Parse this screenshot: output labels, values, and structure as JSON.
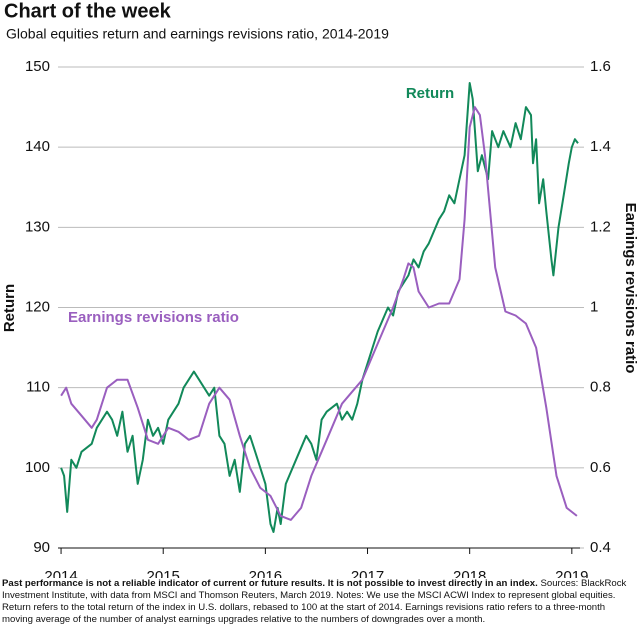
{
  "chart_data": {
    "type": "line",
    "title": "Chart of the week",
    "subtitle": "Global equities return and earnings revisions ratio, 2014-2019",
    "ylabel": "Return",
    "y2label": "Earnings revisions ratio",
    "footnote_bold": "Past performance is not a reliable indicator of current or future results. It is not possible to invest directly in an index.",
    "footnote": "Sources: BlackRock Investment Institute, with data from MSCI and Thomson Reuters, March 2019. Notes: We use the MSCI ACWI Index to represent global equities. Return refers to the total return of the index in U.S. dollars, rebased to 100 at the start of 2014. Earnings revisions ratio refers to a three-month moving average of the number of analyst earnings upgrades relative to the numbers of downgrades over a month.",
    "xlim": [
      2013.97,
      2019.08
    ],
    "xticks": [
      2014,
      2015,
      2016,
      2017,
      2018,
      2019
    ],
    "ylim": [
      90,
      150
    ],
    "yticks": [
      90,
      100,
      110,
      120,
      130,
      140,
      150
    ],
    "y2lim": [
      0.4,
      1.6
    ],
    "y2ticks": [
      0.4,
      0.6,
      0.8,
      1,
      1.2,
      1.4,
      1.6
    ],
    "grid": true,
    "series": [
      {
        "name": "Return",
        "color": "#12895a",
        "x": [
          2014.0,
          2014.03,
          2014.06,
          2014.1,
          2014.15,
          2014.2,
          2014.3,
          2014.35,
          2014.45,
          2014.5,
          2014.55,
          2014.6,
          2014.65,
          2014.7,
          2014.75,
          2014.8,
          2014.85,
          2014.9,
          2014.95,
          2015.0,
          2015.05,
          2015.15,
          2015.2,
          2015.3,
          2015.35,
          2015.45,
          2015.5,
          2015.55,
          2015.6,
          2015.65,
          2015.7,
          2015.75,
          2015.8,
          2015.85,
          2015.9,
          2015.95,
          2016.0,
          2016.05,
          2016.08,
          2016.12,
          2016.15,
          2016.2,
          2016.3,
          2016.4,
          2016.45,
          2016.5,
          2016.55,
          2016.6,
          2016.7,
          2016.75,
          2016.8,
          2016.85,
          2016.9,
          2016.95,
          2017.0,
          2017.1,
          2017.2,
          2017.25,
          2017.3,
          2017.4,
          2017.45,
          2017.5,
          2017.55,
          2017.6,
          2017.7,
          2017.75,
          2017.8,
          2017.85,
          2017.9,
          2017.95,
          2018.0,
          2018.03,
          2018.08,
          2018.12,
          2018.18,
          2018.22,
          2018.28,
          2018.33,
          2018.4,
          2018.45,
          2018.5,
          2018.55,
          2018.6,
          2018.62,
          2018.65,
          2018.68,
          2018.72,
          2018.75,
          2018.8,
          2018.82,
          2018.87,
          2018.92,
          2018.97,
          2019.0,
          2019.03,
          2019.06
        ],
        "values": [
          100,
          99,
          94.5,
          101,
          100,
          102,
          103,
          105,
          107,
          106,
          104,
          107,
          102,
          104,
          98,
          101,
          106,
          104,
          105,
          103,
          106,
          108,
          110,
          112,
          111,
          109,
          110,
          104,
          103,
          99,
          101,
          97,
          103,
          104,
          102,
          100,
          98,
          93,
          92,
          95,
          93,
          98,
          101,
          104,
          103,
          101,
          106,
          107,
          108,
          106,
          107,
          106,
          108,
          111,
          113,
          117,
          120,
          119,
          122,
          124,
          126,
          125,
          127,
          128,
          131,
          132,
          134,
          133,
          136,
          139,
          148,
          146,
          137,
          139,
          136,
          142,
          140,
          142,
          140,
          143,
          141,
          145,
          144,
          138,
          141,
          133,
          136,
          132,
          126,
          124,
          130,
          134,
          138,
          140,
          141,
          140.5
        ]
      },
      {
        "name": "Earnings revisions ratio",
        "color": "#9a5fbf",
        "axis": "y2",
        "x": [
          2014.0,
          2014.05,
          2014.1,
          2014.2,
          2014.3,
          2014.35,
          2014.45,
          2014.55,
          2014.65,
          2014.75,
          2014.85,
          2014.95,
          2015.05,
          2015.15,
          2015.25,
          2015.35,
          2015.45,
          2015.55,
          2015.65,
          2015.75,
          2015.85,
          2015.95,
          2016.05,
          2016.15,
          2016.25,
          2016.35,
          2016.45,
          2016.55,
          2016.65,
          2016.75,
          2016.85,
          2016.95,
          2017.05,
          2017.15,
          2017.25,
          2017.35,
          2017.4,
          2017.45,
          2017.5,
          2017.6,
          2017.7,
          2017.8,
          2017.9,
          2017.95,
          2018.0,
          2018.05,
          2018.1,
          2018.15,
          2018.25,
          2018.35,
          2018.45,
          2018.55,
          2018.65,
          2018.75,
          2018.85,
          2018.95,
          2019.05
        ],
        "values": [
          0.78,
          0.8,
          0.76,
          0.73,
          0.7,
          0.72,
          0.8,
          0.82,
          0.82,
          0.75,
          0.67,
          0.66,
          0.7,
          0.69,
          0.67,
          0.68,
          0.76,
          0.8,
          0.77,
          0.68,
          0.6,
          0.55,
          0.53,
          0.48,
          0.47,
          0.5,
          0.58,
          0.64,
          0.7,
          0.76,
          0.79,
          0.82,
          0.88,
          0.94,
          1.0,
          1.07,
          1.11,
          1.1,
          1.04,
          1.0,
          1.01,
          1.01,
          1.07,
          1.22,
          1.45,
          1.5,
          1.48,
          1.38,
          1.1,
          0.99,
          0.98,
          0.96,
          0.9,
          0.75,
          0.58,
          0.5,
          0.48
        ]
      }
    ]
  }
}
